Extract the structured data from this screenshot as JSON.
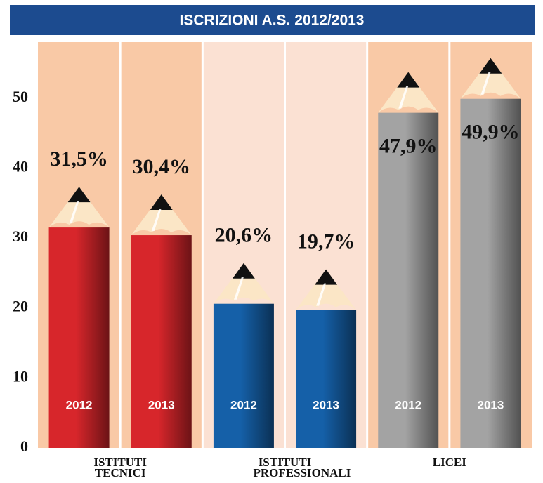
{
  "chart_data": {
    "type": "pencil-bar",
    "title": "ISCRIZIONI A.S. 2012/2013",
    "categories": [
      "ISTITUTI TECNICI",
      "ISTITUTI PROFESSIONALI",
      "LICEI"
    ],
    "colors": [
      "#d7262b",
      "#1560a8",
      "#a3a3a3"
    ],
    "series": [
      {
        "name": "2012",
        "values": [
          31.5,
          20.6,
          47.9
        ],
        "value_labels": [
          "31,5%",
          "20,6%",
          "47,9%"
        ]
      },
      {
        "name": "2013",
        "values": [
          30.4,
          19.7,
          49.9
        ],
        "value_labels": [
          "30,4%",
          "19,7%",
          "49,9%"
        ]
      }
    ],
    "ylim": [
      0,
      58
    ],
    "yticks": [
      0,
      10,
      20,
      30,
      40,
      50
    ],
    "grid": false
  }
}
